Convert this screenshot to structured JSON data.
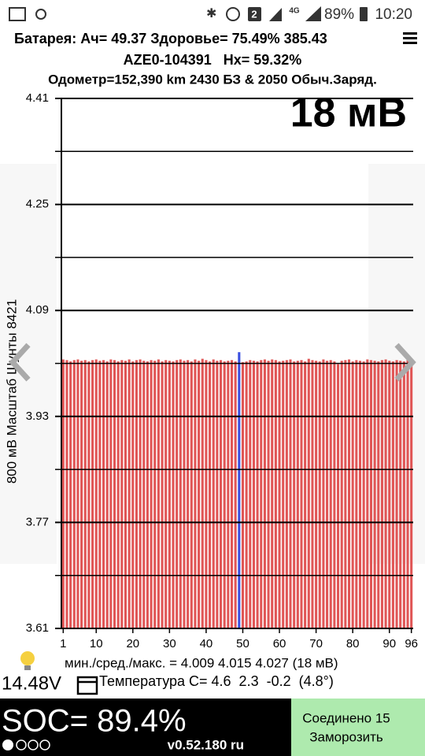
{
  "status_bar": {
    "sim": "2",
    "network": "4G",
    "battery": "89%",
    "time": "10:20"
  },
  "header": {
    "line1": "Батарея: Ач= 49.37 Здоровье= 75.49% 385.43",
    "line2": "AZE0-104391   Hx= 59.32%",
    "line3": "Одометр=152,390 km 2430 БЗ & 2050 Обыч.Заряд."
  },
  "chart_data": {
    "type": "bar",
    "annotation": "18 мВ",
    "y_label": "800 мВ Масштаб  Шунты 8421",
    "x": [
      1,
      2,
      3,
      4,
      5,
      6,
      7,
      8,
      9,
      10,
      11,
      12,
      13,
      14,
      15,
      16,
      17,
      18,
      19,
      20,
      21,
      22,
      23,
      24,
      25,
      26,
      27,
      28,
      29,
      30,
      31,
      32,
      33,
      34,
      35,
      36,
      37,
      38,
      39,
      40,
      41,
      42,
      43,
      44,
      45,
      46,
      47,
      48,
      49,
      50,
      51,
      52,
      53,
      54,
      55,
      56,
      57,
      58,
      59,
      60,
      61,
      62,
      63,
      64,
      65,
      66,
      67,
      68,
      69,
      70,
      71,
      72,
      73,
      74,
      75,
      76,
      77,
      78,
      79,
      80,
      81,
      82,
      83,
      84,
      85,
      86,
      87,
      88,
      89,
      90,
      91,
      92,
      93,
      94,
      95,
      96
    ],
    "values": [
      4.016,
      4.015,
      4.013,
      4.015,
      4.016,
      4.014,
      4.015,
      4.013,
      4.015,
      4.016,
      4.014,
      4.015,
      4.013,
      4.016,
      4.015,
      4.013,
      4.015,
      4.014,
      4.016,
      4.013,
      4.015,
      4.016,
      4.014,
      4.013,
      4.015,
      4.014,
      4.016,
      4.013,
      4.015,
      4.014,
      4.013,
      4.015,
      4.016,
      4.014,
      4.015,
      4.013,
      4.016,
      4.014,
      4.017,
      4.015,
      4.013,
      4.016,
      4.014,
      4.015,
      4.013,
      4.014,
      4.015,
      4.013,
      4.027,
      4.012,
      4.013,
      4.015,
      4.014,
      4.013,
      4.015,
      4.016,
      4.014,
      4.016,
      4.015,
      4.013,
      4.014,
      4.015,
      4.016,
      4.013,
      4.014,
      4.015,
      4.013,
      4.017,
      4.015,
      4.014,
      4.013,
      4.016,
      4.014,
      4.015,
      4.013,
      4.009,
      4.014,
      4.015,
      4.016,
      4.013,
      4.015,
      4.014,
      4.013,
      4.016,
      4.015,
      4.014,
      4.013,
      4.015,
      4.016,
      4.014,
      4.013,
      4.015,
      4.014,
      4.013,
      4.015,
      4.016
    ],
    "color": "#e05555",
    "highlight": {
      "x": 49,
      "color": "#3a4fe0"
    },
    "xlim": [
      0.5,
      96.5
    ],
    "xticks": [
      1,
      10,
      20,
      30,
      40,
      50,
      60,
      70,
      80,
      90,
      96
    ],
    "ylim": [
      3.61,
      4.41
    ],
    "yticks": [
      3.61,
      3.77,
      3.93,
      4.09,
      4.25,
      4.41
    ],
    "minor_yticks": [
      3.69,
      3.85,
      4.01,
      4.17,
      4.33
    ],
    "grid": true
  },
  "stats": {
    "minmax": "мин./сред./макс. = 4.009 4.015 4.027 (18 мВ)",
    "voltage": "14.48V",
    "temperature": "Температура C= 4.6  2.3  -0.2  (4.8°)"
  },
  "footer": {
    "soc": "SOC= 89.4%",
    "version": "v0.52.180 ru",
    "button_line1": "Соединено 15",
    "button_line2": "Заморозить"
  }
}
